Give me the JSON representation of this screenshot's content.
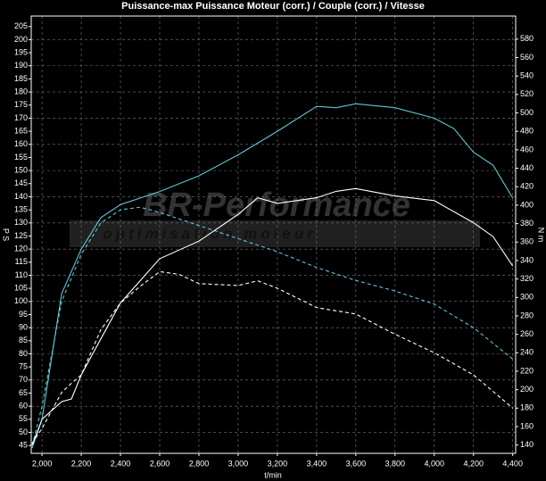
{
  "chart_data": {
    "type": "line",
    "title": "Puissance-max Puissance Moteur (corr.) / Couple (corr.) / Vitesse",
    "y_label": "P S",
    "y2_label": "N m",
    "x_label": "t/min",
    "watermark": "BR-Performance",
    "watermark_subtitle": "optimisation moteur",
    "xlim": [
      1945,
      4415
    ],
    "xticks": [
      {
        "value": 2000,
        "label": "2,000"
      },
      {
        "value": 2200,
        "label": "2,200"
      },
      {
        "value": 2400,
        "label": "2,400"
      },
      {
        "value": 2600,
        "label": "2,600"
      },
      {
        "value": 2800,
        "label": "2,800"
      },
      {
        "value": 3000,
        "label": "3,000"
      },
      {
        "value": 3200,
        "label": "3,200"
      },
      {
        "value": 3400,
        "label": "3,400"
      },
      {
        "value": 3600,
        "label": "3,600"
      },
      {
        "value": 3800,
        "label": "3,800"
      },
      {
        "value": 4000,
        "label": "4,000"
      },
      {
        "value": 4200,
        "label": "4,200"
      },
      {
        "value": 4400,
        "label": "4,400"
      }
    ],
    "ylim": [
      42,
      209
    ],
    "yticks": [
      45,
      50,
      55,
      60,
      65,
      70,
      75,
      80,
      85,
      90,
      95,
      100,
      105,
      110,
      115,
      120,
      125,
      130,
      135,
      140,
      145,
      150,
      155,
      160,
      165,
      170,
      175,
      180,
      185,
      190,
      195,
      200,
      205
    ],
    "y2lim": [
      131,
      605
    ],
    "y2ticks": [
      140,
      160,
      180,
      200,
      220,
      240,
      260,
      280,
      300,
      320,
      340,
      360,
      380,
      400,
      420,
      440,
      460,
      480,
      500,
      520,
      540,
      560,
      580
    ],
    "grid": true,
    "series": [
      {
        "color": "#5fc4d6",
        "dash": false,
        "x": [
          1950,
          2000,
          2100,
          2200,
          2300,
          2400,
          2600,
          2800,
          3000,
          3200,
          3400,
          3500,
          3600,
          3800,
          4000,
          4100,
          4200,
          4300,
          4400
        ],
        "values": [
          44,
          55,
          103,
          120,
          132,
          137,
          142,
          148,
          156,
          165,
          174.5,
          174,
          175.5,
          174,
          170,
          166,
          157,
          152,
          139.5
        ]
      },
      {
        "color": "#5fc4d6",
        "dash": true,
        "x": [
          1950,
          2000,
          2100,
          2200,
          2300,
          2400,
          2500,
          2600,
          2800,
          3000,
          3200,
          3400,
          3600,
          3800,
          4000,
          4200,
          4400
        ],
        "values": [
          45,
          60,
          100,
          118,
          130,
          135,
          136,
          134,
          129,
          124,
          119,
          113,
          108,
          104,
          99,
          90,
          78
        ]
      },
      {
        "color": "#ffffff",
        "dash": false,
        "axis": "y2",
        "x": [
          1950,
          2000,
          2100,
          2150,
          2200,
          2300,
          2400,
          2600,
          2800,
          3000,
          3100,
          3200,
          3400,
          3500,
          3600,
          3800,
          4000,
          4200,
          4300,
          4400
        ],
        "values": [
          140,
          168,
          187,
          190,
          216,
          255,
          294,
          342,
          361,
          390,
          408,
          402,
          408,
          415,
          418,
          410,
          405,
          381,
          366,
          334
        ]
      },
      {
        "color": "#ffffff",
        "dash": true,
        "axis": "y2",
        "x": [
          1950,
          2000,
          2100,
          2150,
          2200,
          2300,
          2400,
          2500,
          2600,
          2700,
          2800,
          3000,
          3100,
          3200,
          3400,
          3600,
          3800,
          4000,
          4200,
          4400
        ],
        "values": [
          142,
          158,
          197,
          207,
          216,
          265,
          294,
          312,
          328,
          325,
          315,
          313,
          318,
          310,
          289,
          282,
          260,
          240,
          216,
          180
        ]
      }
    ]
  }
}
